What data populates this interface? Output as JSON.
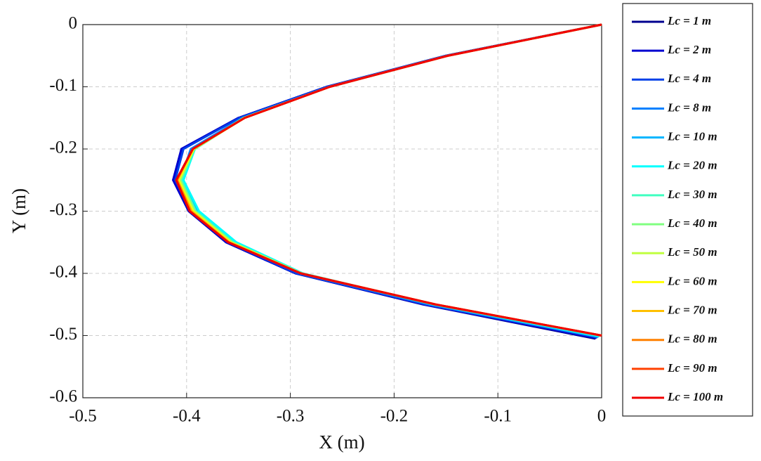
{
  "chart_data": {
    "type": "line",
    "xlabel": "X (m)",
    "ylabel": "Y (m)",
    "xlim": [
      -0.5,
      0
    ],
    "ylim": [
      -0.6,
      0
    ],
    "xticks": [
      -0.5,
      -0.4,
      -0.3,
      -0.2,
      -0.1,
      0
    ],
    "yticks": [
      0,
      -0.1,
      -0.2,
      -0.3,
      -0.4,
      -0.5,
      -0.6
    ],
    "grid": true,
    "legend": "outside-right",
    "series": [
      {
        "name": "Lc = 1 m",
        "color": "#00008f",
        "x": [
          0,
          -0.15,
          -0.265,
          -0.35,
          -0.405,
          -0.413,
          -0.398,
          -0.362,
          -0.295,
          -0.172,
          -0.006
        ],
        "values": [
          0,
          -0.05,
          -0.1,
          -0.15,
          -0.2,
          -0.25,
          -0.3,
          -0.35,
          -0.4,
          -0.45,
          -0.505
        ]
      },
      {
        "name": "Lc = 2 m",
        "color": "#0000d0",
        "x": [
          0,
          -0.15,
          -0.265,
          -0.35,
          -0.405,
          -0.413,
          -0.398,
          -0.362,
          -0.295,
          -0.171,
          -0.005
        ],
        "values": [
          0,
          -0.05,
          -0.1,
          -0.15,
          -0.2,
          -0.25,
          -0.3,
          -0.35,
          -0.4,
          -0.45,
          -0.504
        ]
      },
      {
        "name": "Lc = 4 m",
        "color": "#0040e8",
        "x": [
          0,
          -0.15,
          -0.264,
          -0.349,
          -0.403,
          -0.411,
          -0.396,
          -0.36,
          -0.294,
          -0.169,
          -0.004
        ],
        "values": [
          0,
          -0.05,
          -0.1,
          -0.15,
          -0.2,
          -0.25,
          -0.3,
          -0.35,
          -0.4,
          -0.45,
          -0.503
        ]
      },
      {
        "name": "Lc = 8 m",
        "color": "#0080ff",
        "x": [
          0,
          -0.149,
          -0.263,
          -0.346,
          -0.396,
          -0.406,
          -0.391,
          -0.355,
          -0.29,
          -0.165,
          -0.003
        ],
        "values": [
          0,
          -0.05,
          -0.1,
          -0.15,
          -0.2,
          -0.25,
          -0.3,
          -0.35,
          -0.4,
          -0.45,
          -0.502
        ]
      },
      {
        "name": "Lc = 10 m",
        "color": "#00b4ff",
        "x": [
          0,
          -0.148,
          -0.262,
          -0.345,
          -0.393,
          -0.404,
          -0.389,
          -0.353,
          -0.289,
          -0.163,
          -0.003
        ],
        "values": [
          0,
          -0.05,
          -0.1,
          -0.15,
          -0.2,
          -0.25,
          -0.3,
          -0.35,
          -0.4,
          -0.45,
          -0.502
        ]
      },
      {
        "name": "Lc = 20 m",
        "color": "#00ffff",
        "x": [
          0,
          -0.148,
          -0.262,
          -0.345,
          -0.392,
          -0.403,
          -0.388,
          -0.352,
          -0.288,
          -0.162,
          -0.002
        ],
        "values": [
          0,
          -0.05,
          -0.1,
          -0.15,
          -0.2,
          -0.25,
          -0.3,
          -0.35,
          -0.4,
          -0.45,
          -0.501
        ]
      },
      {
        "name": "Lc = 30 m",
        "color": "#40ffc0",
        "x": [
          0,
          -0.148,
          -0.262,
          -0.345,
          -0.392,
          -0.405,
          -0.391,
          -0.355,
          -0.289,
          -0.161,
          -0.001
        ],
        "values": [
          0,
          -0.05,
          -0.1,
          -0.15,
          -0.2,
          -0.25,
          -0.3,
          -0.35,
          -0.4,
          -0.45,
          -0.5
        ]
      },
      {
        "name": "Lc = 40 m",
        "color": "#80ff80",
        "x": [
          0,
          -0.148,
          -0.262,
          -0.345,
          -0.393,
          -0.406,
          -0.392,
          -0.356,
          -0.289,
          -0.16,
          0
        ],
        "values": [
          0,
          -0.05,
          -0.1,
          -0.15,
          -0.2,
          -0.25,
          -0.3,
          -0.35,
          -0.4,
          -0.45,
          -0.5
        ]
      },
      {
        "name": "Lc = 50 m",
        "color": "#c0ff40",
        "x": [
          0,
          -0.148,
          -0.262,
          -0.344,
          -0.393,
          -0.407,
          -0.393,
          -0.357,
          -0.29,
          -0.16,
          0
        ],
        "values": [
          0,
          -0.05,
          -0.1,
          -0.15,
          -0.2,
          -0.25,
          -0.3,
          -0.35,
          -0.4,
          -0.45,
          -0.5
        ]
      },
      {
        "name": "Lc = 60 m",
        "color": "#ffff00",
        "x": [
          0,
          -0.148,
          -0.262,
          -0.344,
          -0.393,
          -0.408,
          -0.394,
          -0.358,
          -0.29,
          -0.16,
          0
        ],
        "values": [
          0,
          -0.05,
          -0.1,
          -0.15,
          -0.2,
          -0.25,
          -0.3,
          -0.35,
          -0.4,
          -0.45,
          -0.5
        ]
      },
      {
        "name": "Lc = 70 m",
        "color": "#ffc000",
        "x": [
          0,
          -0.148,
          -0.262,
          -0.344,
          -0.394,
          -0.409,
          -0.395,
          -0.359,
          -0.29,
          -0.16,
          0
        ],
        "values": [
          0,
          -0.05,
          -0.1,
          -0.15,
          -0.2,
          -0.25,
          -0.3,
          -0.35,
          -0.4,
          -0.45,
          -0.5
        ]
      },
      {
        "name": "Lc = 80 m",
        "color": "#ff8000",
        "x": [
          0,
          -0.148,
          -0.262,
          -0.344,
          -0.394,
          -0.409,
          -0.396,
          -0.359,
          -0.29,
          -0.16,
          0
        ],
        "values": [
          0,
          -0.05,
          -0.1,
          -0.15,
          -0.2,
          -0.25,
          -0.3,
          -0.35,
          -0.4,
          -0.45,
          -0.5
        ]
      },
      {
        "name": "Lc = 90 m",
        "color": "#ff4000",
        "x": [
          0,
          -0.148,
          -0.262,
          -0.344,
          -0.394,
          -0.41,
          -0.397,
          -0.36,
          -0.29,
          -0.16,
          0
        ],
        "values": [
          0,
          -0.05,
          -0.1,
          -0.15,
          -0.2,
          -0.25,
          -0.3,
          -0.35,
          -0.4,
          -0.45,
          -0.5
        ]
      },
      {
        "name": "Lc = 100 m",
        "color": "#f00000",
        "x": [
          0,
          -0.148,
          -0.262,
          -0.344,
          -0.394,
          -0.41,
          -0.397,
          -0.36,
          -0.29,
          -0.16,
          0
        ],
        "values": [
          0,
          -0.05,
          -0.1,
          -0.15,
          -0.2,
          -0.25,
          -0.3,
          -0.35,
          -0.4,
          -0.45,
          -0.5
        ]
      }
    ]
  }
}
